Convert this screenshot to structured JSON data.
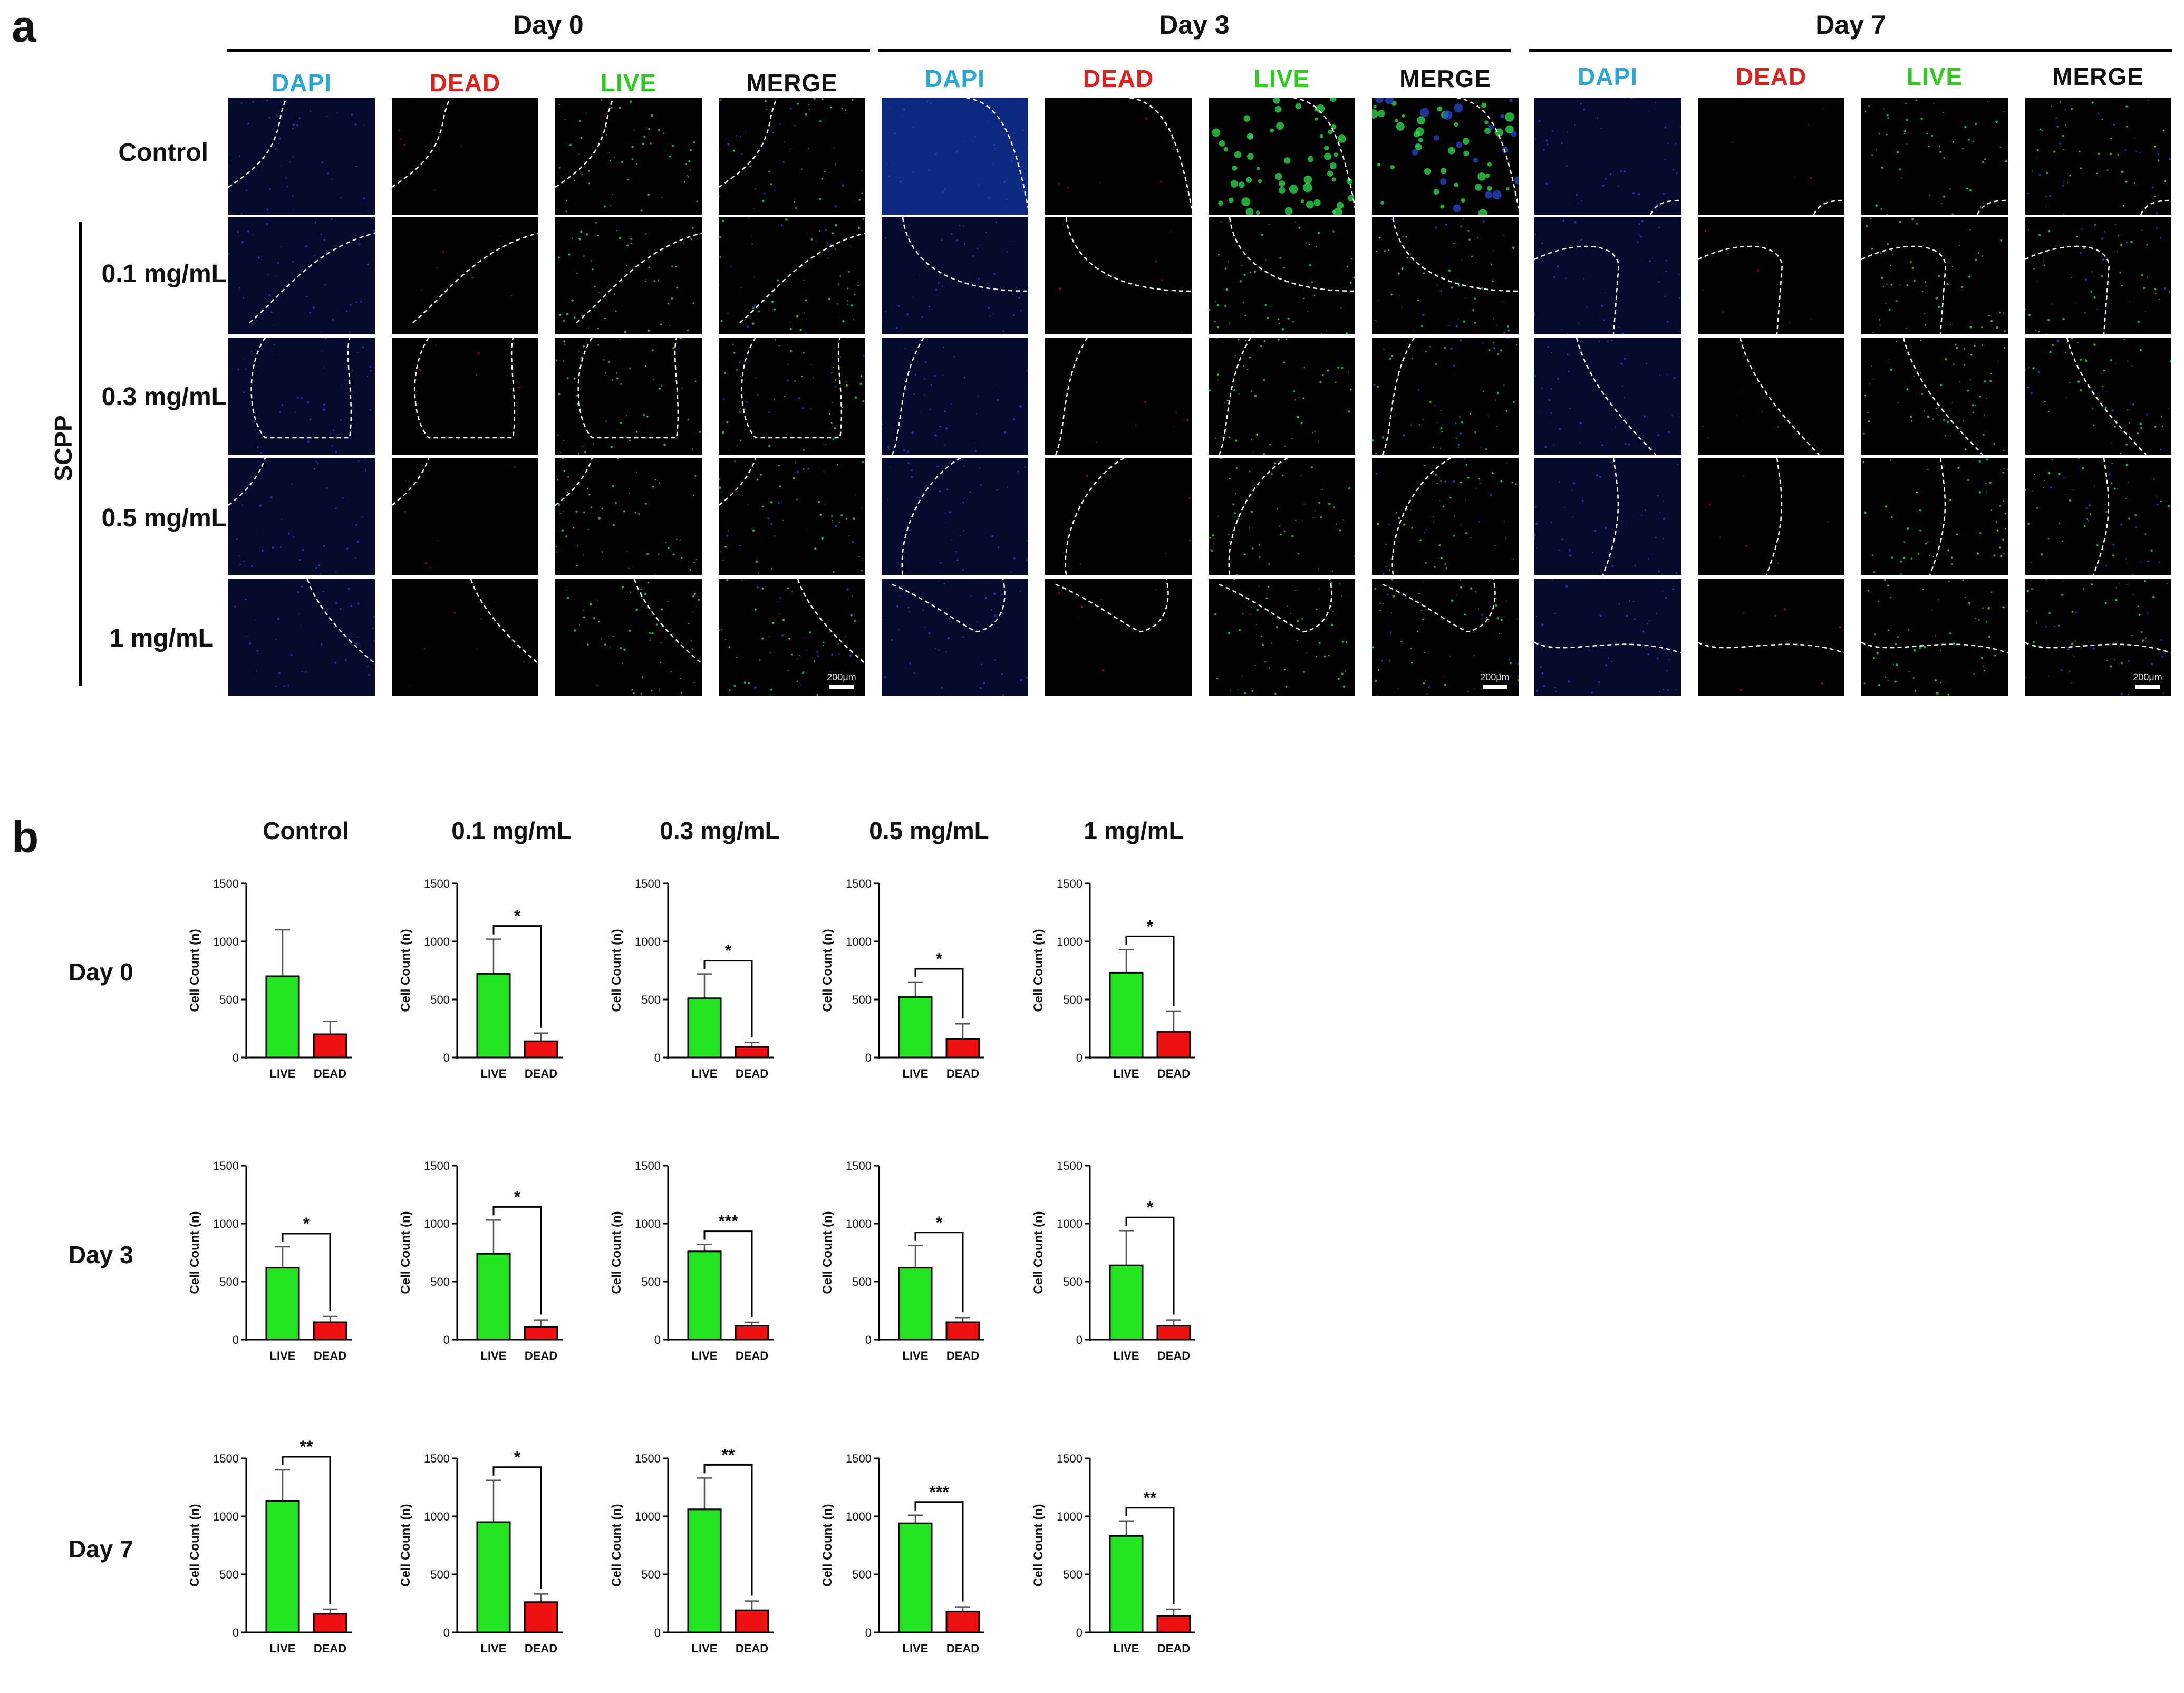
{
  "panel_a": {
    "letter": "a",
    "days": [
      "Day 0",
      "Day 3",
      "Day 7"
    ],
    "channels": [
      {
        "name": "DAPI",
        "color": "#29a8d8"
      },
      {
        "name": "DEAD",
        "color": "#e0201b"
      },
      {
        "name": "LIVE",
        "color": "#2ecc1e"
      },
      {
        "name": "MERGE",
        "color": "#111111"
      }
    ],
    "rows": [
      "Control",
      "0.1 mg/mL",
      "0.3 mg/mL",
      "0.5 mg/mL",
      "1 mg/mL"
    ],
    "group_label": "SCPP",
    "scale_bar": "200μm"
  },
  "panel_b": {
    "letter": "b",
    "columns": [
      "Control",
      "0.1 mg/mL",
      "0.3 mg/mL",
      "0.5 mg/mL",
      "1 mg/mL"
    ],
    "rows": [
      "Day 0",
      "Day 3",
      "Day 7"
    ]
  },
  "chart_data": [
    {
      "type": "bar",
      "day": "Day 0",
      "group": "Control",
      "categories": [
        "LIVE",
        "DEAD"
      ],
      "values": [
        700,
        200
      ],
      "errors": [
        400,
        110
      ],
      "sig": "",
      "ylabel": "Cell Count (n)",
      "ylim": [
        0,
        1500
      ],
      "yticks": [
        0,
        500,
        1000,
        1500
      ],
      "colors": [
        "#22e622",
        "#ee1111"
      ]
    },
    {
      "type": "bar",
      "day": "Day 0",
      "group": "0.1 mg/mL",
      "categories": [
        "LIVE",
        "DEAD"
      ],
      "values": [
        720,
        140
      ],
      "errors": [
        300,
        70
      ],
      "sig": "*",
      "ylabel": "Cell Count (n)",
      "ylim": [
        0,
        1500
      ],
      "yticks": [
        0,
        500,
        1000,
        1500
      ],
      "colors": [
        "#22e622",
        "#ee1111"
      ]
    },
    {
      "type": "bar",
      "day": "Day 0",
      "group": "0.3 mg/mL",
      "categories": [
        "LIVE",
        "DEAD"
      ],
      "values": [
        510,
        90
      ],
      "errors": [
        210,
        40
      ],
      "sig": "*",
      "ylabel": "Cell Count (n)",
      "ylim": [
        0,
        1500
      ],
      "yticks": [
        0,
        500,
        1000,
        1500
      ],
      "colors": [
        "#22e622",
        "#ee1111"
      ]
    },
    {
      "type": "bar",
      "day": "Day 0",
      "group": "0.5 mg/mL",
      "categories": [
        "LIVE",
        "DEAD"
      ],
      "values": [
        520,
        160
      ],
      "errors": [
        130,
        130
      ],
      "sig": "*",
      "ylabel": "Cell Count (n)",
      "ylim": [
        0,
        1500
      ],
      "yticks": [
        0,
        500,
        1000,
        1500
      ],
      "colors": [
        "#22e622",
        "#ee1111"
      ]
    },
    {
      "type": "bar",
      "day": "Day 0",
      "group": "1 mg/mL",
      "categories": [
        "LIVE",
        "DEAD"
      ],
      "values": [
        730,
        220
      ],
      "errors": [
        200,
        180
      ],
      "sig": "*",
      "ylabel": "Cell Count (n)",
      "ylim": [
        0,
        1500
      ],
      "yticks": [
        0,
        500,
        1000,
        1500
      ],
      "colors": [
        "#22e622",
        "#ee1111"
      ]
    },
    {
      "type": "bar",
      "day": "Day 3",
      "group": "Control",
      "categories": [
        "LIVE",
        "DEAD"
      ],
      "values": [
        620,
        150
      ],
      "errors": [
        180,
        50
      ],
      "sig": "*",
      "ylabel": "Cell Count (n)",
      "ylim": [
        0,
        1500
      ],
      "yticks": [
        0,
        500,
        1000,
        1500
      ],
      "colors": [
        "#22e622",
        "#ee1111"
      ]
    },
    {
      "type": "bar",
      "day": "Day 3",
      "group": "0.1 mg/mL",
      "categories": [
        "LIVE",
        "DEAD"
      ],
      "values": [
        740,
        110
      ],
      "errors": [
        290,
        60
      ],
      "sig": "*",
      "ylabel": "Cell Count (n)",
      "ylim": [
        0,
        1500
      ],
      "yticks": [
        0,
        500,
        1000,
        1500
      ],
      "colors": [
        "#22e622",
        "#ee1111"
      ]
    },
    {
      "type": "bar",
      "day": "Day 3",
      "group": "0.3 mg/mL",
      "categories": [
        "LIVE",
        "DEAD"
      ],
      "values": [
        760,
        120
      ],
      "errors": [
        60,
        30
      ],
      "sig": "***",
      "ylabel": "Cell Count (n)",
      "ylim": [
        0,
        1500
      ],
      "yticks": [
        0,
        500,
        1000,
        1500
      ],
      "colors": [
        "#22e622",
        "#ee1111"
      ]
    },
    {
      "type": "bar",
      "day": "Day 3",
      "group": "0.5 mg/mL",
      "categories": [
        "LIVE",
        "DEAD"
      ],
      "values": [
        620,
        150
      ],
      "errors": [
        190,
        40
      ],
      "sig": "*",
      "ylabel": "Cell Count (n)",
      "ylim": [
        0,
        1500
      ],
      "yticks": [
        0,
        500,
        1000,
        1500
      ],
      "colors": [
        "#22e622",
        "#ee1111"
      ]
    },
    {
      "type": "bar",
      "day": "Day 3",
      "group": "1 mg/mL",
      "categories": [
        "LIVE",
        "DEAD"
      ],
      "values": [
        640,
        120
      ],
      "errors": [
        300,
        50
      ],
      "sig": "*",
      "ylabel": "Cell Count (n)",
      "ylim": [
        0,
        1500
      ],
      "yticks": [
        0,
        500,
        1000,
        1500
      ],
      "colors": [
        "#22e622",
        "#ee1111"
      ]
    },
    {
      "type": "bar",
      "day": "Day 7",
      "group": "Control",
      "categories": [
        "LIVE",
        "DEAD"
      ],
      "values": [
        1130,
        160
      ],
      "errors": [
        270,
        40
      ],
      "sig": "**",
      "ylabel": "Cell Count (n)",
      "ylim": [
        0,
        1500
      ],
      "yticks": [
        0,
        500,
        1000,
        1500
      ],
      "colors": [
        "#22e622",
        "#ee1111"
      ]
    },
    {
      "type": "bar",
      "day": "Day 7",
      "group": "0.1 mg/mL",
      "categories": [
        "LIVE",
        "DEAD"
      ],
      "values": [
        950,
        260
      ],
      "errors": [
        360,
        70
      ],
      "sig": "*",
      "ylabel": "Cell Count (n)",
      "ylim": [
        0,
        1500
      ],
      "yticks": [
        0,
        500,
        1000,
        1500
      ],
      "colors": [
        "#22e622",
        "#ee1111"
      ]
    },
    {
      "type": "bar",
      "day": "Day 7",
      "group": "0.3 mg/mL",
      "categories": [
        "LIVE",
        "DEAD"
      ],
      "values": [
        1060,
        190
      ],
      "errors": [
        270,
        80
      ],
      "sig": "**",
      "ylabel": "Cell Count (n)",
      "ylim": [
        0,
        1500
      ],
      "yticks": [
        0,
        500,
        1000,
        1500
      ],
      "colors": [
        "#22e622",
        "#ee1111"
      ]
    },
    {
      "type": "bar",
      "day": "Day 7",
      "group": "0.5 mg/mL",
      "categories": [
        "LIVE",
        "DEAD"
      ],
      "values": [
        940,
        180
      ],
      "errors": [
        70,
        40
      ],
      "sig": "***",
      "ylabel": "Cell Count (n)",
      "ylim": [
        0,
        1500
      ],
      "yticks": [
        0,
        500,
        1000,
        1500
      ],
      "colors": [
        "#22e622",
        "#ee1111"
      ]
    },
    {
      "type": "bar",
      "day": "Day 7",
      "group": "1 mg/mL",
      "categories": [
        "LIVE",
        "DEAD"
      ],
      "values": [
        830,
        140
      ],
      "errors": [
        130,
        60
      ],
      "sig": "**",
      "ylabel": "Cell Count (n)",
      "ylim": [
        0,
        1500
      ],
      "yticks": [
        0,
        500,
        1000,
        1500
      ],
      "colors": [
        "#22e622",
        "#ee1111"
      ]
    }
  ]
}
